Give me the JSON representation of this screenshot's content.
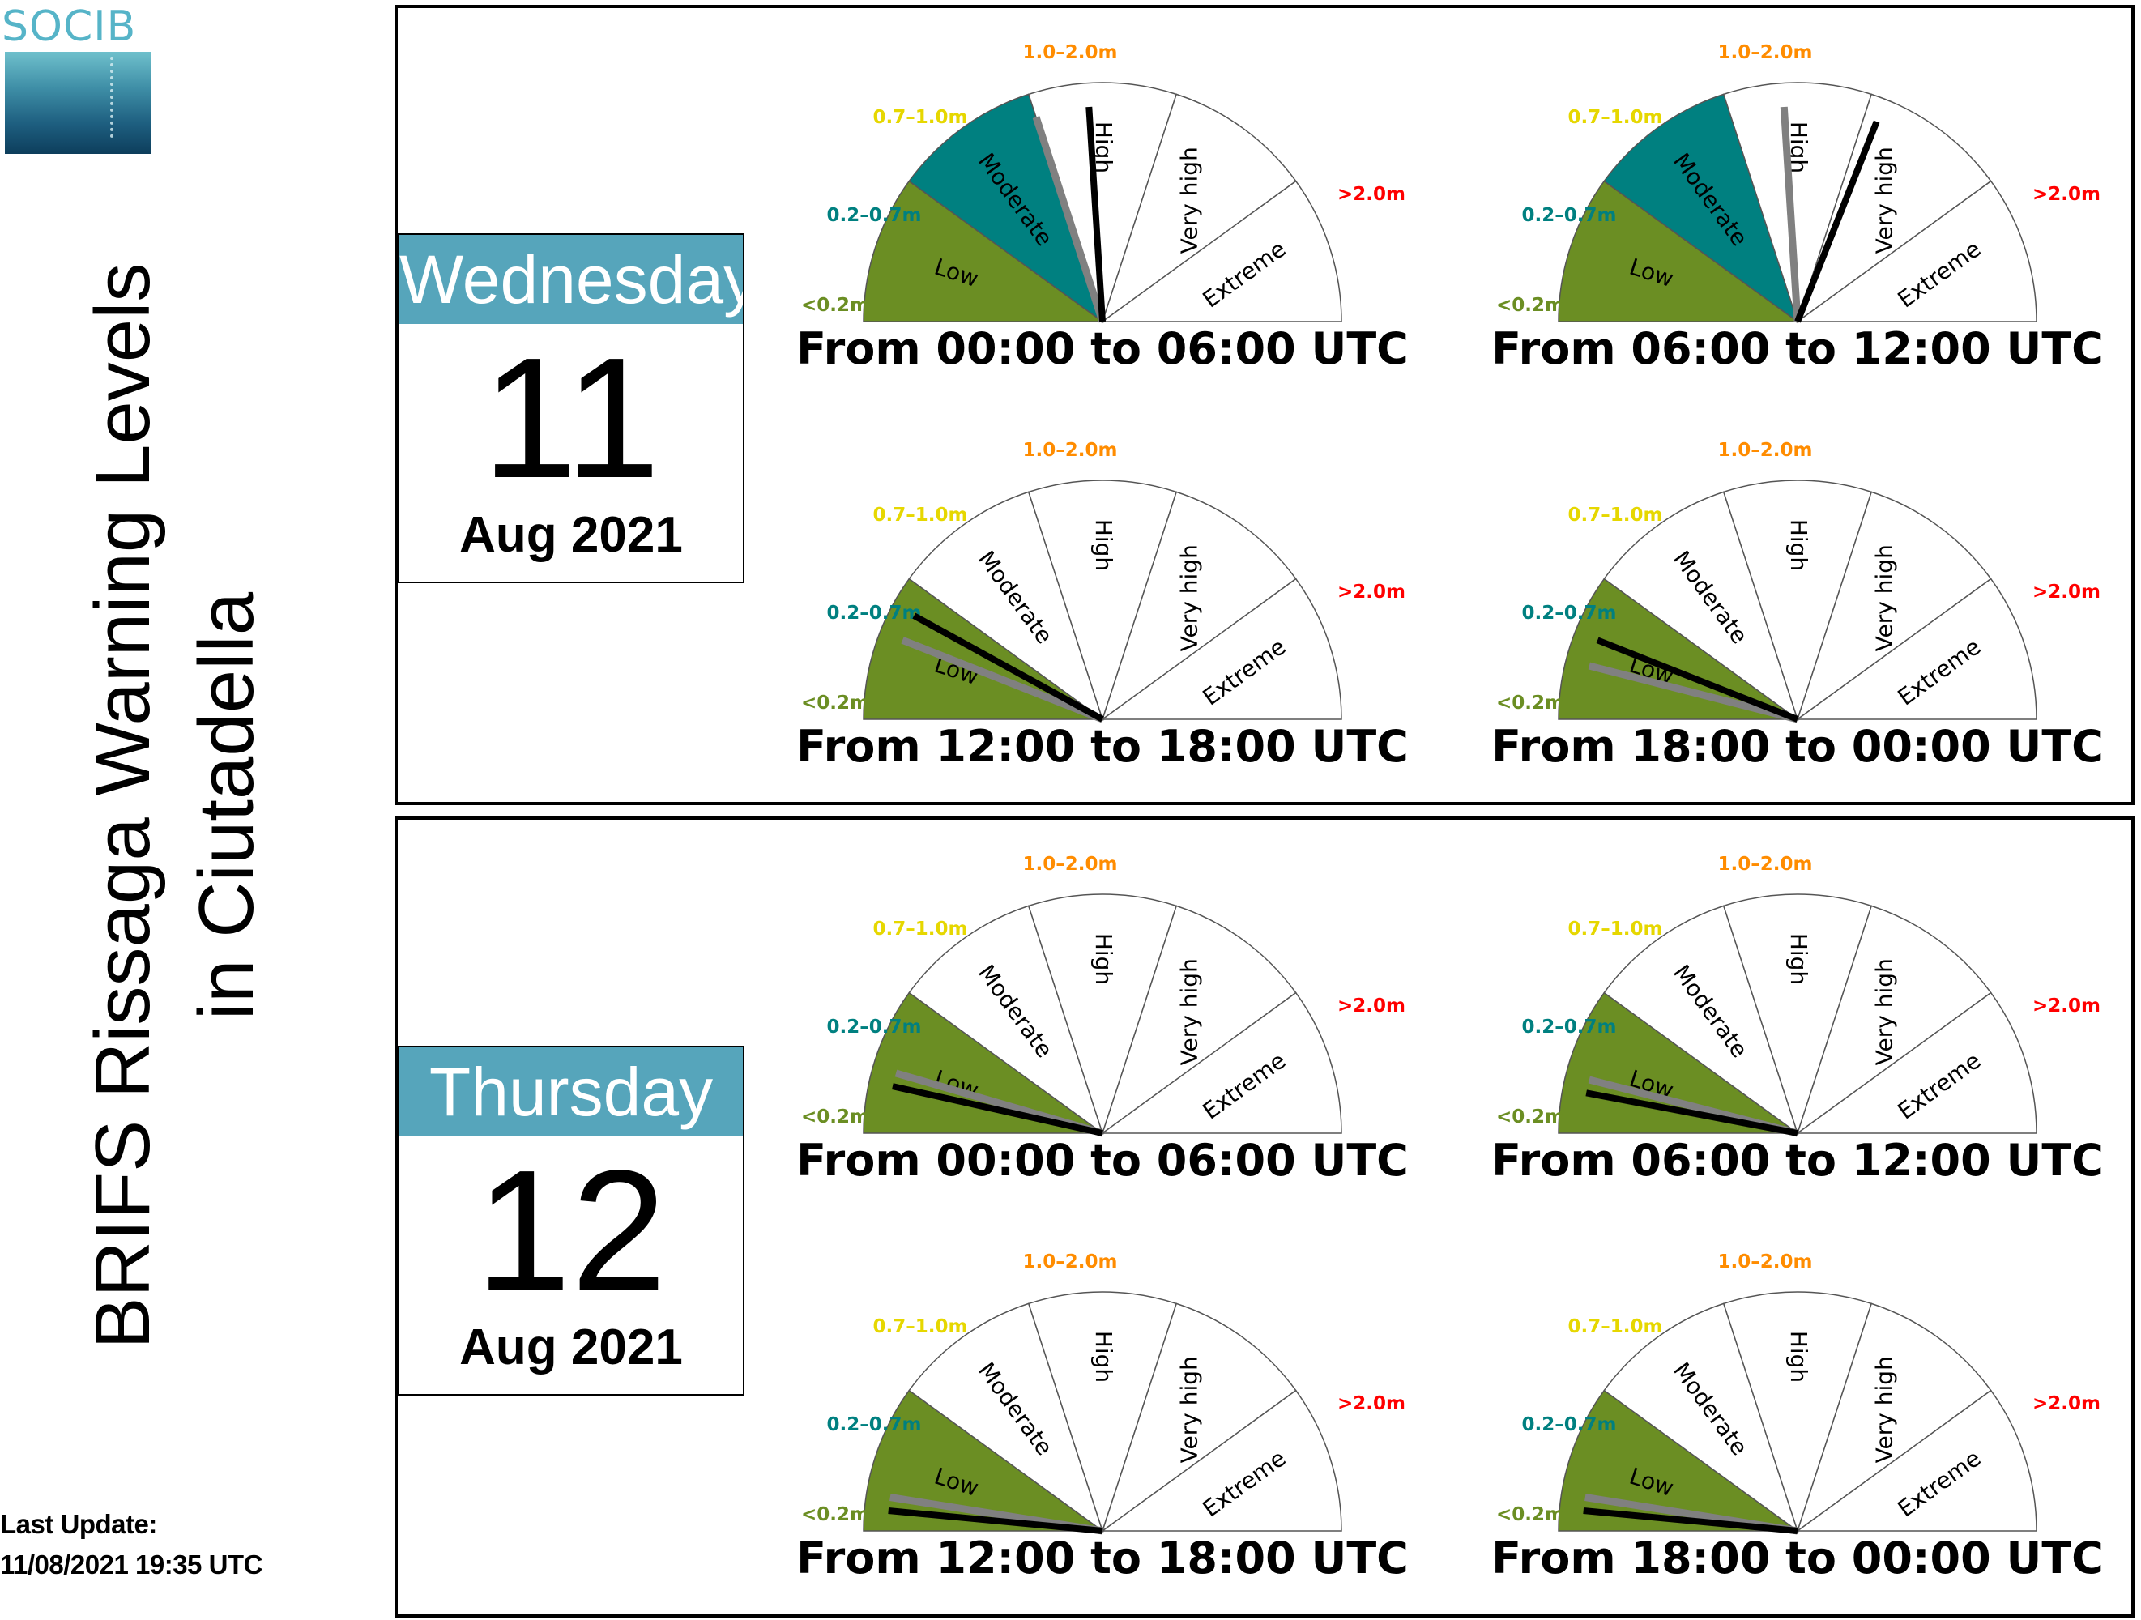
{
  "logo": {
    "text": "SOCIB"
  },
  "title": {
    "line1": "BRIFS Rissaga Warning Levels",
    "line2": "in Ciutadella"
  },
  "last_update": {
    "label": "Last Update:",
    "value": "11/08/2021 19:35 UTC"
  },
  "gauge_scale": {
    "sectors": [
      {
        "name": "Low",
        "range": "<0.2m",
        "color": "#6b8e23",
        "range_color": "#6b8e23"
      },
      {
        "name": "Moderate",
        "range": "0.2–0.7m",
        "color": "#008080",
        "range_color": "#008080"
      },
      {
        "name": "High",
        "range": "0.7–1.0m",
        "color": "#ffd700",
        "range_color": "#e6d700"
      },
      {
        "name": "Very high",
        "range": "1.0–2.0m",
        "color": "#ff8c00",
        "range_color": "#ff8c00"
      },
      {
        "name": "Extreme",
        "range": ">2.0m",
        "color": "#ff0000",
        "range_color": "#ff0000"
      }
    ]
  },
  "days": [
    {
      "weekday": "Wednesday",
      "day": "11",
      "month_year": "Aug 2021",
      "periods": [
        {
          "label": "From 00:00 to 06:00 UTC",
          "level": 1,
          "black_needle": 0.48,
          "gray_needle": 0.4
        },
        {
          "label": "From 06:00 to 12:00 UTC",
          "level": 1,
          "black_needle": 0.62,
          "gray_needle": 0.48
        },
        {
          "label": "From 12:00 to 18:00 UTC",
          "level": 0,
          "black_needle": 0.16,
          "gray_needle": 0.12
        },
        {
          "label": "From 18:00 to 00:00 UTC",
          "level": 0,
          "black_needle": 0.12,
          "gray_needle": 0.08
        }
      ]
    },
    {
      "weekday": "Thursday",
      "day": "12",
      "month_year": "Aug 2021",
      "periods": [
        {
          "label": "From 00:00 to 06:00 UTC",
          "level": 0,
          "black_needle": 0.07,
          "gray_needle": 0.09
        },
        {
          "label": "From 06:00 to 12:00 UTC",
          "level": 0,
          "black_needle": 0.06,
          "gray_needle": 0.08
        },
        {
          "label": "From 12:00 to 18:00 UTC",
          "level": 0,
          "black_needle": 0.03,
          "gray_needle": 0.05
        },
        {
          "label": "From 18:00 to 00:00 UTC",
          "level": 0,
          "black_needle": 0.03,
          "gray_needle": 0.05
        }
      ]
    }
  ]
}
